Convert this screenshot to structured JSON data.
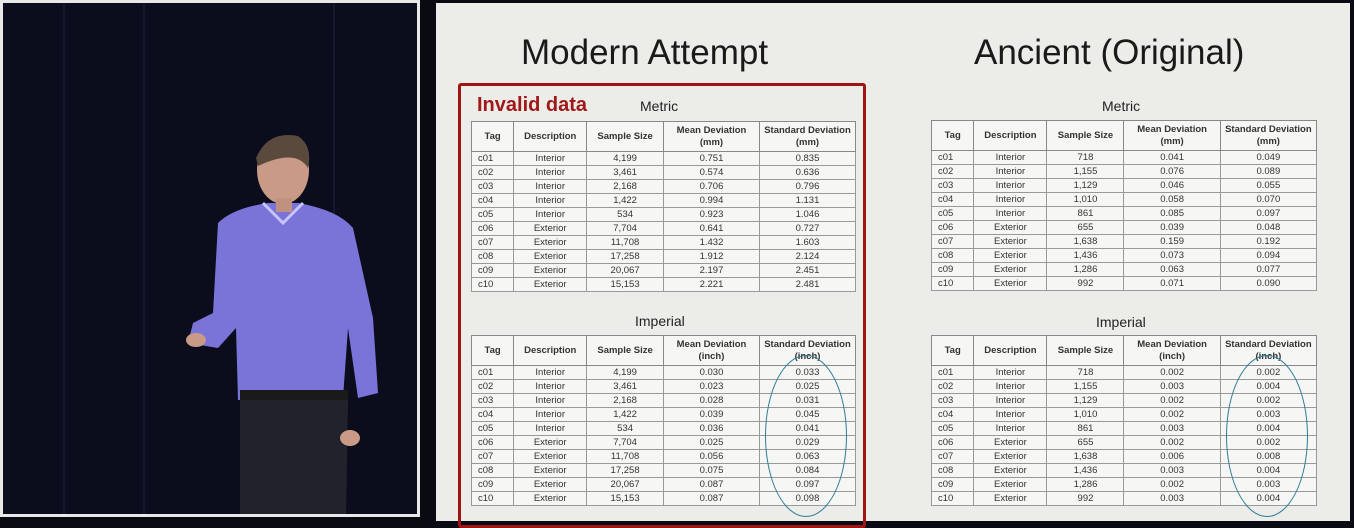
{
  "slide": {
    "left_title": "Modern Attempt",
    "right_title": "Ancient (Original)",
    "invalid_label": "Invalid data",
    "colors": {
      "invalid_box": "#a11414",
      "circle": "#2b7c98"
    },
    "headers_metric": [
      "Tag",
      "Description",
      "Sample Size",
      "Mean Deviation (mm)",
      "Standard Deviation (mm)"
    ],
    "headers_imperial": [
      "Tag",
      "Description",
      "Sample Size",
      "Mean Deviation (inch)",
      "Standard Deviation (inch)"
    ],
    "modern": {
      "metric_label": "Metric",
      "imperial_label": "Imperial",
      "metric_rows": [
        [
          "c01",
          "Interior",
          "4,199",
          "0.751",
          "0.835"
        ],
        [
          "c02",
          "Interior",
          "3,461",
          "0.574",
          "0.636"
        ],
        [
          "c03",
          "Interior",
          "2,168",
          "0.706",
          "0.796"
        ],
        [
          "c04",
          "Interior",
          "1,422",
          "0.994",
          "1.131"
        ],
        [
          "c05",
          "Interior",
          "534",
          "0.923",
          "1.046"
        ],
        [
          "c06",
          "Exterior",
          "7,704",
          "0.641",
          "0.727"
        ],
        [
          "c07",
          "Exterior",
          "11,708",
          "1.432",
          "1.603"
        ],
        [
          "c08",
          "Exterior",
          "17,258",
          "1.912",
          "2.124"
        ],
        [
          "c09",
          "Exterior",
          "20,067",
          "2.197",
          "2.451"
        ],
        [
          "c10",
          "Exterior",
          "15,153",
          "2.221",
          "2.481"
        ]
      ],
      "imperial_rows": [
        [
          "c01",
          "Interior",
          "4,199",
          "0.030",
          "0.033"
        ],
        [
          "c02",
          "Interior",
          "3,461",
          "0.023",
          "0.025"
        ],
        [
          "c03",
          "Interior",
          "2,168",
          "0.028",
          "0.031"
        ],
        [
          "c04",
          "Interior",
          "1,422",
          "0.039",
          "0.045"
        ],
        [
          "c05",
          "Interior",
          "534",
          "0.036",
          "0.041"
        ],
        [
          "c06",
          "Exterior",
          "7,704",
          "0.025",
          "0.029"
        ],
        [
          "c07",
          "Exterior",
          "11,708",
          "0.056",
          "0.063"
        ],
        [
          "c08",
          "Exterior",
          "17,258",
          "0.075",
          "0.084"
        ],
        [
          "c09",
          "Exterior",
          "20,067",
          "0.087",
          "0.097"
        ],
        [
          "c10",
          "Exterior",
          "15,153",
          "0.087",
          "0.098"
        ]
      ]
    },
    "ancient": {
      "metric_label": "Metric",
      "imperial_label": "Imperial",
      "metric_rows": [
        [
          "c01",
          "Interior",
          "718",
          "0.041",
          "0.049"
        ],
        [
          "c02",
          "Interior",
          "1,155",
          "0.076",
          "0.089"
        ],
        [
          "c03",
          "Interior",
          "1,129",
          "0.046",
          "0.055"
        ],
        [
          "c04",
          "Interior",
          "1,010",
          "0.058",
          "0.070"
        ],
        [
          "c05",
          "Interior",
          "861",
          "0.085",
          "0.097"
        ],
        [
          "c06",
          "Exterior",
          "655",
          "0.039",
          "0.048"
        ],
        [
          "c07",
          "Exterior",
          "1,638",
          "0.159",
          "0.192"
        ],
        [
          "c08",
          "Exterior",
          "1,436",
          "0.073",
          "0.094"
        ],
        [
          "c09",
          "Exterior",
          "1,286",
          "0.063",
          "0.077"
        ],
        [
          "c10",
          "Exterior",
          "992",
          "0.071",
          "0.090"
        ]
      ],
      "imperial_rows": [
        [
          "c01",
          "Interior",
          "718",
          "0.002",
          "0.002"
        ],
        [
          "c02",
          "Interior",
          "1,155",
          "0.003",
          "0.004"
        ],
        [
          "c03",
          "Interior",
          "1,129",
          "0.002",
          "0.002"
        ],
        [
          "c04",
          "Interior",
          "1,010",
          "0.002",
          "0.003"
        ],
        [
          "c05",
          "Interior",
          "861",
          "0.003",
          "0.004"
        ],
        [
          "c06",
          "Exterior",
          "655",
          "0.002",
          "0.002"
        ],
        [
          "c07",
          "Exterior",
          "1,638",
          "0.006",
          "0.008"
        ],
        [
          "c08",
          "Exterior",
          "1,436",
          "0.003",
          "0.004"
        ],
        [
          "c09",
          "Exterior",
          "1,286",
          "0.002",
          "0.003"
        ],
        [
          "c10",
          "Exterior",
          "992",
          "0.003",
          "0.004"
        ]
      ]
    }
  }
}
